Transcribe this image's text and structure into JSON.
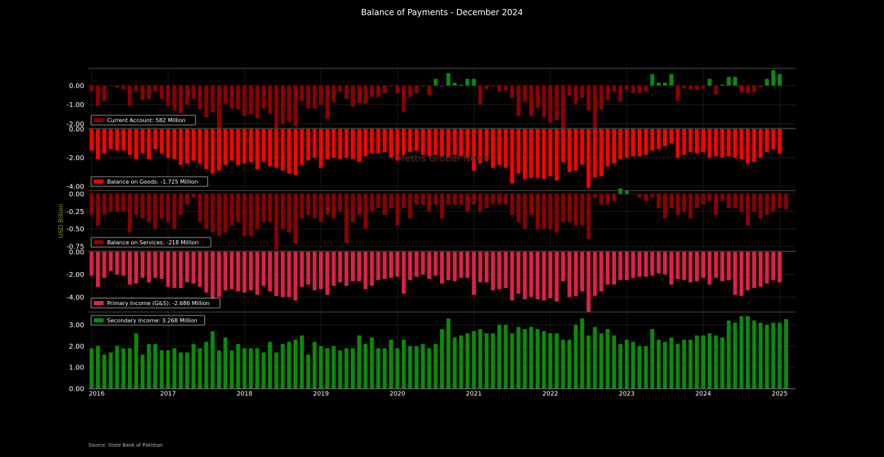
{
  "title": "Balance of Payments - December 2024",
  "source": "Source: State Bank of Pakistan",
  "watermark": "Mettis Global News",
  "ylabel": "USD Billion",
  "chart_data": {
    "type": "bar",
    "x_start": "2016-01",
    "x_ticks": [
      "2016",
      "2017",
      "2018",
      "2019",
      "2020",
      "2021",
      "2022",
      "2023",
      "2024",
      "2025"
    ],
    "grid": true,
    "legend_position": "bottom-left",
    "panels": [
      {
        "name": "Current Account",
        "legend": "Current Account: 582 Million",
        "color": "#8b0000",
        "positive_color": "#0b8a0b",
        "ylim": [
          -2.2,
          0.9
        ],
        "yticks": [
          0,
          -1,
          -2
        ],
        "ytick_labels": [
          "0.00",
          "-1.00",
          "-2.00"
        ],
        "values": [
          -0.3,
          -1.05,
          -0.8,
          0.0,
          -0.1,
          -0.2,
          -1.05,
          -0.3,
          -0.75,
          -0.7,
          -0.3,
          -0.7,
          -1.05,
          -1.3,
          -1.45,
          -1.0,
          -0.7,
          -1.25,
          -1.65,
          -1.4,
          -2.25,
          -0.95,
          -1.2,
          -1.25,
          -1.6,
          -1.5,
          -1.7,
          -1.2,
          -1.45,
          -2.2,
          -2.0,
          -1.9,
          -2.1,
          -0.8,
          -1.2,
          -1.2,
          -1.0,
          -1.75,
          -0.85,
          -0.3,
          -0.7,
          -1.1,
          -0.9,
          -0.95,
          -0.6,
          -0.6,
          -0.4,
          -0.05,
          -0.4,
          -1.35,
          -0.6,
          -0.4,
          -0.05,
          -0.5,
          0.35,
          -0.05,
          0.65,
          0.15,
          0.05,
          0.35,
          0.35,
          -1.0,
          -0.2,
          -0.05,
          -0.3,
          -0.25,
          -0.65,
          -1.6,
          -0.85,
          -1.6,
          -1.15,
          -1.65,
          -1.95,
          -1.8,
          -2.3,
          -0.5,
          -0.95,
          -0.65,
          -1.3,
          -2.35,
          -1.25,
          -0.75,
          -0.3,
          -0.85,
          -0.2,
          -0.4,
          -0.4,
          -0.3,
          0.6,
          0.15,
          0.15,
          0.6,
          -0.8,
          -0.15,
          -0.2,
          -0.25,
          -0.15,
          0.35,
          -0.45,
          0.05,
          0.45,
          0.45,
          -0.35,
          -0.4,
          -0.35,
          -0.1,
          0.35,
          0.8,
          0.6
        ]
      },
      {
        "name": "Balance on Goods",
        "legend": "Balance on Goods: -1.725 Million",
        "color": "#ff0000",
        "ylim": [
          -4.2,
          0.05
        ],
        "yticks": [
          0,
          -2,
          -4
        ],
        "ytick_labels": [
          "0.00",
          "-2.00",
          "-4.00"
        ],
        "values": [
          -1.5,
          -2.1,
          -1.7,
          -1.4,
          -1.5,
          -1.5,
          -1.8,
          -2.1,
          -1.7,
          -2.1,
          -1.4,
          -1.7,
          -2.0,
          -2.1,
          -2.5,
          -2.4,
          -2.2,
          -2.4,
          -2.8,
          -3.1,
          -2.9,
          -2.5,
          -2.2,
          -2.5,
          -2.4,
          -2.3,
          -2.8,
          -2.3,
          -2.6,
          -2.7,
          -2.9,
          -3.1,
          -3.2,
          -2.5,
          -2.2,
          -2.0,
          -2.7,
          -2.1,
          -2.0,
          -2.1,
          -2.0,
          -2.1,
          -2.3,
          -1.9,
          -1.7,
          -1.7,
          -1.6,
          -2.0,
          -2.2,
          -1.8,
          -1.6,
          -1.5,
          -1.8,
          -1.9,
          -1.8,
          -1.9,
          -2.0,
          -1.8,
          -1.9,
          -2.0,
          -2.9,
          -2.4,
          -2.2,
          -2.7,
          -2.5,
          -2.7,
          -3.8,
          -3.1,
          -3.5,
          -3.4,
          -3.4,
          -3.5,
          -3.3,
          -3.6,
          -2.3,
          -3.0,
          -2.9,
          -2.5,
          -4.1,
          -3.4,
          -3.3,
          -2.6,
          -2.4,
          -2.1,
          -2.0,
          -1.9,
          -1.9,
          -1.8,
          -1.5,
          -1.4,
          -1.2,
          -1.0,
          -2.0,
          -1.8,
          -1.6,
          -1.7,
          -1.6,
          -2.0,
          -1.9,
          -2.0,
          -1.9,
          -2.0,
          -2.1,
          -2.4,
          -2.3,
          -2.0,
          -1.6,
          -1.4,
          -1.7
        ]
      },
      {
        "name": "Balance on Services",
        "legend": "Balance on Services: -218 Million",
        "color": "#8b0000",
        "positive_color": "#0b8a0b",
        "ylim": [
          -0.8,
          0.05
        ],
        "yticks": [
          0,
          -0.25,
          -0.5,
          -0.75
        ],
        "ytick_labels": [
          "0.00",
          "-0.25",
          "-0.50",
          "-0.75"
        ],
        "values": [
          -0.3,
          -0.45,
          -0.3,
          -0.25,
          -0.25,
          -0.25,
          -0.55,
          -0.3,
          -0.35,
          -0.4,
          -0.5,
          -0.35,
          -0.4,
          -0.5,
          -0.3,
          -0.15,
          -0.05,
          -0.4,
          -0.5,
          -0.55,
          -0.6,
          -0.55,
          -0.45,
          -0.4,
          -0.6,
          -0.6,
          -0.5,
          -0.4,
          -0.4,
          -0.8,
          -0.5,
          -0.55,
          -0.7,
          -0.35,
          -0.3,
          -0.35,
          -0.4,
          -0.3,
          -0.35,
          -0.25,
          -0.7,
          -0.4,
          -0.3,
          -0.5,
          -0.25,
          -0.2,
          -0.3,
          -0.2,
          -0.45,
          -0.2,
          -0.35,
          -0.15,
          -0.15,
          -0.25,
          -0.15,
          -0.35,
          -0.15,
          -0.15,
          -0.15,
          -0.25,
          -0.15,
          -0.25,
          -0.2,
          -0.15,
          -0.15,
          -0.15,
          -0.3,
          -0.4,
          -0.5,
          -0.3,
          -0.5,
          -0.5,
          -0.5,
          -0.55,
          -0.4,
          -0.4,
          -0.45,
          -0.45,
          -0.65,
          -0.05,
          -0.15,
          -0.15,
          -0.1,
          0.08,
          0.05,
          0.0,
          -0.05,
          -0.1,
          -0.05,
          -0.2,
          -0.35,
          -0.2,
          -0.3,
          -0.25,
          -0.35,
          -0.2,
          -0.15,
          -0.1,
          -0.3,
          -0.1,
          -0.2,
          -0.2,
          -0.25,
          -0.45,
          -0.25,
          -0.35,
          -0.3,
          -0.25,
          -0.2,
          -0.22
        ]
      },
      {
        "name": "Primary Income (G&S)",
        "legend": "Primary Income (G&S): -2.686 Million",
        "color": "#dc2245",
        "ylim": [
          -5.2,
          0.05
        ],
        "yticks": [
          0,
          -2,
          -4
        ],
        "ytick_labels": [
          "0.00",
          "-2.00",
          "-4.00"
        ],
        "values": [
          -2.1,
          -3.1,
          -2.3,
          -1.7,
          -2.0,
          -2.1,
          -2.9,
          -2.8,
          -2.3,
          -2.7,
          -2.3,
          -2.4,
          -3.1,
          -3.2,
          -3.2,
          -2.7,
          -2.8,
          -3.1,
          -3.6,
          -4.1,
          -4.0,
          -3.4,
          -3.3,
          -3.5,
          -3.6,
          -3.4,
          -3.8,
          -3.0,
          -3.5,
          -3.9,
          -4.0,
          -4.0,
          -4.3,
          -3.1,
          -2.9,
          -3.4,
          -3.3,
          -3.8,
          -3.0,
          -2.7,
          -3.0,
          -2.6,
          -2.6,
          -3.3,
          -3.0,
          -2.5,
          -2.4,
          -2.3,
          -2.2,
          -3.7,
          -2.5,
          -2.2,
          -2.0,
          -2.4,
          -2.1,
          -2.8,
          -2.5,
          -2.6,
          -2.3,
          -2.3,
          -3.8,
          -2.7,
          -2.7,
          -3.4,
          -3.3,
          -3.2,
          -4.3,
          -3.7,
          -4.2,
          -4.0,
          -4.2,
          -4.3,
          -4.1,
          -4.4,
          -2.6,
          -4.0,
          -3.9,
          -3.5,
          -5.3,
          -3.9,
          -3.5,
          -2.9,
          -2.9,
          -2.5,
          -2.5,
          -2.3,
          -2.2,
          -2.2,
          -2.1,
          -1.9,
          -2.0,
          -2.9,
          -2.4,
          -2.5,
          -2.7,
          -2.6,
          -2.3,
          -2.9,
          -2.3,
          -2.6,
          -2.5,
          -3.8,
          -3.9,
          -3.4,
          -3.2,
          -3.1,
          -2.8,
          -2.5,
          -2.7
        ]
      },
      {
        "name": "Secondary Income",
        "legend": "Secondary Income: 3.268 Million",
        "color": "#0b8a0b",
        "ylim": [
          0,
          3.6
        ],
        "yticks": [
          0,
          1,
          2,
          3
        ],
        "ytick_labels": [
          "0.00",
          "1.00",
          "2.00",
          "3.00"
        ],
        "values": [
          1.9,
          2.0,
          1.6,
          1.7,
          2.0,
          1.9,
          1.9,
          2.6,
          1.6,
          2.1,
          2.1,
          1.8,
          1.8,
          1.9,
          1.7,
          1.7,
          2.1,
          1.9,
          2.2,
          2.7,
          1.8,
          2.4,
          1.8,
          2.1,
          1.9,
          1.9,
          1.9,
          1.7,
          2.2,
          1.7,
          2.1,
          2.2,
          2.3,
          2.5,
          1.6,
          2.2,
          2.0,
          1.9,
          2.0,
          1.8,
          1.9,
          1.9,
          2.5,
          2.1,
          2.4,
          1.9,
          1.9,
          2.3,
          1.9,
          2.3,
          2.0,
          2.0,
          2.1,
          1.9,
          2.1,
          2.8,
          3.3,
          2.4,
          2.5,
          2.6,
          2.7,
          2.8,
          2.6,
          2.6,
          3.0,
          3.0,
          2.6,
          2.9,
          2.8,
          2.9,
          2.8,
          2.7,
          2.6,
          2.6,
          2.3,
          2.3,
          3.0,
          3.3,
          2.5,
          2.9,
          2.6,
          2.8,
          2.5,
          2.1,
          2.3,
          2.2,
          2.0,
          2.0,
          2.8,
          2.3,
          2.2,
          2.4,
          2.1,
          2.3,
          2.3,
          2.5,
          2.5,
          2.6,
          2.5,
          2.4,
          3.2,
          3.1,
          3.4,
          3.4,
          3.2,
          3.1,
          3.0,
          3.1,
          3.1,
          3.27
        ]
      }
    ]
  }
}
